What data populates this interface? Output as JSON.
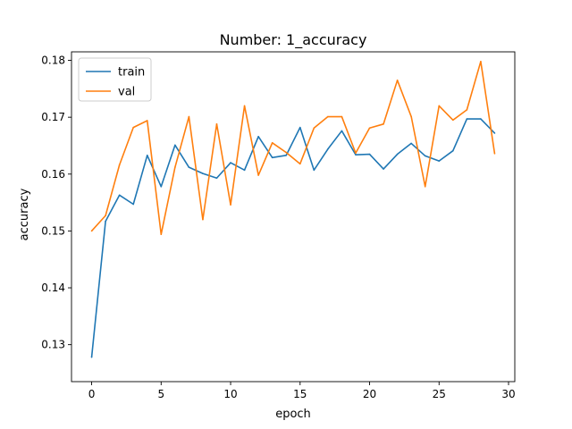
{
  "chart_data": {
    "type": "line",
    "title": "Number: 1_accuracy",
    "xlabel": "epoch",
    "ylabel": "accuracy",
    "xlim": [
      -1.45,
      30.45
    ],
    "ylim": [
      0.1235,
      0.1815
    ],
    "xticks": [
      0,
      5,
      10,
      15,
      20,
      25,
      30
    ],
    "yticks": [
      0.13,
      0.14,
      0.15,
      0.16,
      0.17,
      0.18
    ],
    "ytick_labels": [
      "0.13",
      "0.14",
      "0.15",
      "0.16",
      "0.17",
      "0.18"
    ],
    "legend_position": "upper-left",
    "grid": false,
    "x": [
      0,
      1,
      2,
      3,
      4,
      5,
      6,
      7,
      8,
      9,
      10,
      11,
      12,
      13,
      14,
      15,
      16,
      17,
      18,
      19,
      20,
      21,
      22,
      23,
      24,
      25,
      26,
      27,
      28,
      29
    ],
    "series": [
      {
        "name": "train",
        "color": "#1f77b4",
        "values": [
          0.1278,
          0.1517,
          0.1563,
          0.1547,
          0.1633,
          0.1578,
          0.1651,
          0.1612,
          0.1601,
          0.1593,
          0.162,
          0.1607,
          0.1666,
          0.1629,
          0.1633,
          0.1682,
          0.1607,
          0.1644,
          0.1676,
          0.1634,
          0.1635,
          0.1609,
          0.1635,
          0.1654,
          0.1632,
          0.1623,
          0.1641,
          0.1697,
          0.1697,
          0.1672
        ]
      },
      {
        "name": "val",
        "color": "#ff7f0e",
        "values": [
          0.15,
          0.1527,
          0.1616,
          0.1682,
          0.1694,
          0.1494,
          0.1612,
          0.1701,
          0.152,
          0.1688,
          0.1546,
          0.172,
          0.1598,
          0.1655,
          0.1638,
          0.1618,
          0.1681,
          0.1701,
          0.1701,
          0.1637,
          0.1681,
          0.1688,
          0.1765,
          0.1701,
          0.1578,
          0.172,
          0.1695,
          0.1713,
          0.1798,
          0.1636
        ]
      }
    ]
  }
}
